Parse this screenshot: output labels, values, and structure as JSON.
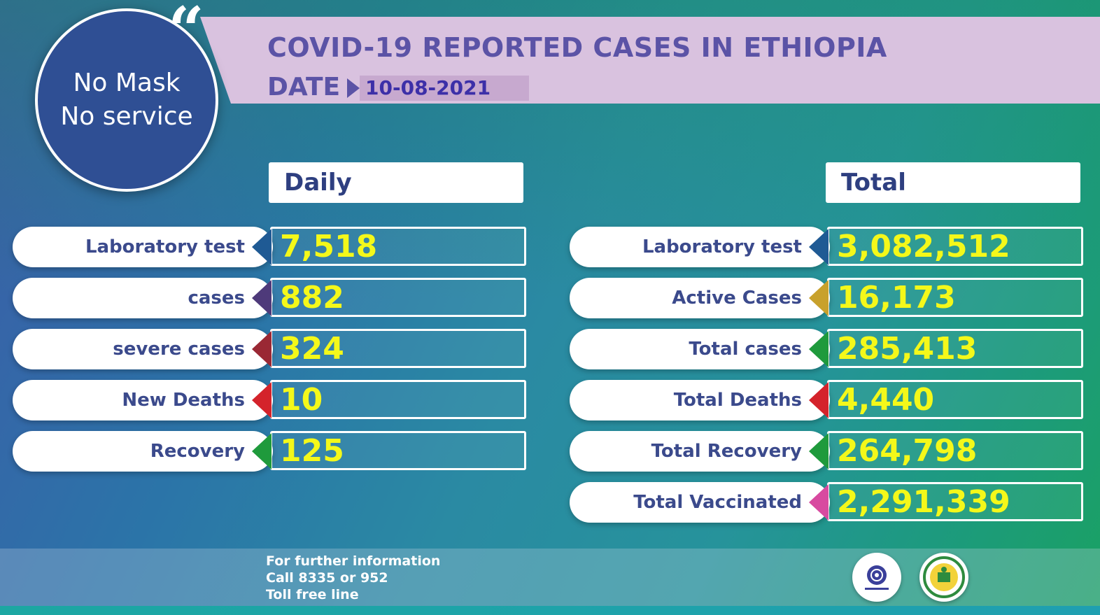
{
  "header": {
    "title": "COVID-19 REPORTED CASES IN ETHIOPIA",
    "date_label": "DATE",
    "date_value": "10-08-2021"
  },
  "badge": {
    "line1": "No Mask",
    "line2": "No service",
    "quote_mark": "“"
  },
  "daily": {
    "heading": "Daily",
    "rows": [
      {
        "label": "Laboratory test",
        "value": "7,518",
        "color": "#1f5a94"
      },
      {
        "label": "cases",
        "value": "882",
        "color": "#4e3a7a"
      },
      {
        "label": "severe cases",
        "value": "324",
        "color": "#9a2834"
      },
      {
        "label": "New Deaths",
        "value": "10",
        "color": "#d4232b"
      },
      {
        "label": "Recovery",
        "value": "125",
        "color": "#1f9a3c"
      }
    ]
  },
  "total": {
    "heading": "Total",
    "rows": [
      {
        "label": "Laboratory test",
        "value": "3,082,512",
        "color": "#1f5a94"
      },
      {
        "label": "Active Cases",
        "value": "16,173",
        "color": "#c8a12c"
      },
      {
        "label": "Total cases",
        "value": "285,413",
        "color": "#1f9a3c"
      },
      {
        "label": "Total Deaths",
        "value": "4,440",
        "color": "#d4232b"
      },
      {
        "label": "Total Recovery",
        "value": "264,798",
        "color": "#1f9a3c"
      },
      {
        "label": "Total Vaccinated",
        "value": "2,291,339",
        "color": "#d84aa0"
      }
    ]
  },
  "footer": {
    "line1": "For further information",
    "line2": "Call 8335 or 952",
    "line3": "Toll free line",
    "logos": [
      "ministry-of-health-logo",
      "ethiopian-public-health-institute-logo"
    ]
  }
}
